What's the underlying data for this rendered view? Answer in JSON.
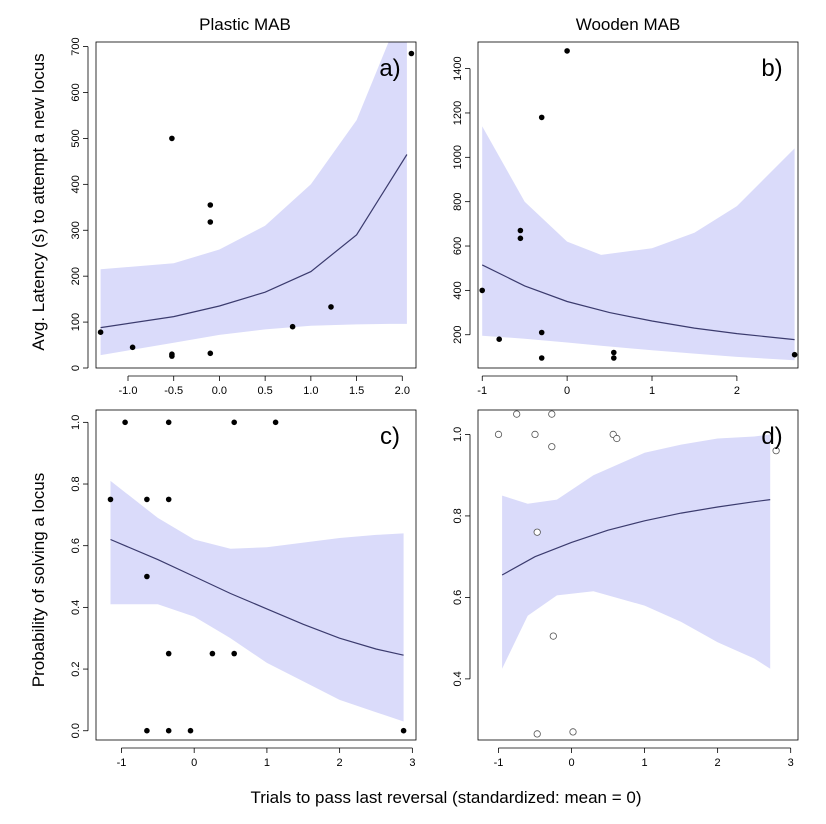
{
  "figure": {
    "column_titles": [
      "Plastic MAB",
      "Wooden MAB"
    ],
    "y_title_top": "Avg. Latency (s) to attempt a new locus",
    "y_title_bottom": "Probability of solving a locus",
    "x_title": "Trials to pass last reversal (standardized: mean = 0)",
    "band_color": "#dadbfa",
    "line_color": "#3b3b6e",
    "point_color": "#000000",
    "overlap_point_color": "#2e2e6a"
  },
  "chart_data": [
    {
      "type": "scatter",
      "panel_label": "a)",
      "column": "Plastic MAB",
      "xlim": [
        -1.35,
        2.15
      ],
      "ylim": [
        0,
        710
      ],
      "x_ticks": [
        -1.0,
        -0.5,
        0.0,
        0.5,
        1.0,
        1.5,
        2.0
      ],
      "x_tick_labels": [
        "-1.0",
        "-0.5",
        "0.0",
        "0.5",
        "1.0",
        "1.5",
        "2.0"
      ],
      "y_ticks": [
        0,
        100,
        200,
        300,
        400,
        500,
        600,
        700
      ],
      "y_tick_labels": [
        "0",
        "100",
        "200",
        "300",
        "400",
        "500",
        "600",
        "700"
      ],
      "points": [
        {
          "x": -1.3,
          "y": 78
        },
        {
          "x": -0.95,
          "y": 45
        },
        {
          "x": -0.52,
          "y": 500
        },
        {
          "x": -0.52,
          "y": 30
        },
        {
          "x": -0.52,
          "y": 26
        },
        {
          "x": -0.1,
          "y": 355
        },
        {
          "x": -0.1,
          "y": 318
        },
        {
          "x": -0.1,
          "y": 32
        },
        {
          "x": 0.8,
          "y": 90
        },
        {
          "x": 1.22,
          "y": 133
        },
        {
          "x": 2.1,
          "y": 685
        }
      ],
      "fit": {
        "x": [
          -1.3,
          -0.5,
          0.0,
          0.5,
          1.0,
          1.5,
          2.05
        ],
        "y": [
          88,
          112,
          135,
          165,
          210,
          290,
          465
        ]
      },
      "band": {
        "x": [
          -1.3,
          -0.5,
          0.0,
          0.5,
          1.0,
          1.5,
          1.85,
          2.05
        ],
        "upper": [
          215,
          228,
          258,
          310,
          400,
          540,
          710,
          710
        ],
        "lower": [
          28,
          55,
          72,
          84,
          92,
          95,
          96,
          96
        ]
      }
    },
    {
      "type": "scatter",
      "panel_label": "b)",
      "column": "Wooden MAB",
      "xlim": [
        -1.05,
        2.72
      ],
      "ylim": [
        50,
        1520
      ],
      "x_ticks": [
        -1,
        0,
        1,
        2
      ],
      "x_tick_labels": [
        "-1",
        "0",
        "1",
        "2"
      ],
      "y_ticks": [
        200,
        400,
        600,
        800,
        1000,
        1200,
        1400
      ],
      "y_tick_labels": [
        "200",
        "400",
        "600",
        "800",
        "1000",
        "1200",
        "1400"
      ],
      "points": [
        {
          "x": -1.0,
          "y": 400
        },
        {
          "x": -0.8,
          "y": 180
        },
        {
          "x": -0.3,
          "y": 1180
        },
        {
          "x": -0.3,
          "y": 210
        },
        {
          "x": -0.3,
          "y": 95
        },
        {
          "x": -0.55,
          "y": 670
        },
        {
          "x": -0.55,
          "y": 635
        },
        {
          "x": 0.0,
          "y": 1480
        },
        {
          "x": 0.55,
          "y": 120
        },
        {
          "x": 0.55,
          "y": 95
        },
        {
          "x": 2.68,
          "y": 110
        }
      ],
      "fit": {
        "x": [
          -1.0,
          -0.5,
          0.0,
          0.5,
          1.0,
          1.5,
          2.0,
          2.68
        ],
        "y": [
          515,
          420,
          350,
          300,
          262,
          230,
          205,
          178
        ]
      },
      "band": {
        "x": [
          -1.0,
          -0.5,
          0.0,
          0.4,
          1.0,
          1.5,
          2.0,
          2.68
        ],
        "upper": [
          1140,
          800,
          620,
          560,
          590,
          660,
          780,
          1040
        ],
        "lower": [
          195,
          182,
          165,
          150,
          130,
          115,
          100,
          85
        ]
      }
    },
    {
      "type": "scatter",
      "panel_label": "c)",
      "column": "Plastic MAB",
      "xlim": [
        -1.35,
        3.05
      ],
      "ylim": [
        -0.03,
        1.04
      ],
      "x_ticks": [
        -1,
        0,
        1,
        2,
        3
      ],
      "x_tick_labels": [
        "-1",
        "0",
        "1",
        "2",
        "3"
      ],
      "y_ticks": [
        0.0,
        0.2,
        0.4,
        0.6,
        0.8,
        1.0
      ],
      "y_tick_labels": [
        "0.0",
        "0.2",
        "0.4",
        "0.6",
        "0.8",
        "1.0"
      ],
      "points": [
        {
          "x": -0.95,
          "y": 1.0
        },
        {
          "x": -0.35,
          "y": 1.0
        },
        {
          "x": 0.55,
          "y": 1.0
        },
        {
          "x": 1.12,
          "y": 1.0
        },
        {
          "x": -1.15,
          "y": 0.75
        },
        {
          "x": -0.65,
          "y": 0.75
        },
        {
          "x": -0.35,
          "y": 0.75
        },
        {
          "x": -0.65,
          "y": 0.5
        },
        {
          "x": -0.35,
          "y": 0.25
        },
        {
          "x": 0.25,
          "y": 0.25
        },
        {
          "x": 0.55,
          "y": 0.25
        },
        {
          "x": -0.65,
          "y": 0.0
        },
        {
          "x": -0.35,
          "y": 0.0
        },
        {
          "x": -0.05,
          "y": 0.0
        },
        {
          "x": 2.88,
          "y": 0.0
        }
      ],
      "fit": {
        "x": [
          -1.15,
          -0.5,
          0.0,
          0.5,
          1.0,
          1.5,
          2.0,
          2.5,
          2.88
        ],
        "y": [
          0.62,
          0.555,
          0.5,
          0.445,
          0.395,
          0.345,
          0.3,
          0.265,
          0.245
        ]
      },
      "band": {
        "x": [
          -1.15,
          -0.5,
          0.0,
          0.5,
          1.0,
          1.5,
          2.0,
          2.5,
          2.88
        ],
        "upper": [
          0.81,
          0.69,
          0.62,
          0.59,
          0.595,
          0.61,
          0.625,
          0.635,
          0.64
        ],
        "lower": [
          0.41,
          0.41,
          0.37,
          0.3,
          0.22,
          0.16,
          0.1,
          0.06,
          0.03
        ]
      }
    },
    {
      "type": "scatter",
      "panel_label": "d)",
      "column": "Wooden MAB",
      "xlim": [
        -1.28,
        3.1
      ],
      "ylim": [
        0.25,
        1.06
      ],
      "x_ticks": [
        -1,
        0,
        1,
        2,
        3
      ],
      "x_tick_labels": [
        "-1",
        "0",
        "1",
        "2",
        "3"
      ],
      "y_ticks": [
        0.4,
        0.6,
        0.8,
        1.0
      ],
      "y_tick_labels": [
        "0.4",
        "0.6",
        "0.8",
        "1.0"
      ],
      "marker": "open-circle",
      "points": [
        {
          "x": -1.0,
          "y": 1.0
        },
        {
          "x": -0.75,
          "y": 1.05
        },
        {
          "x": -0.5,
          "y": 1.0
        },
        {
          "x": -0.27,
          "y": 1.05
        },
        {
          "x": -0.27,
          "y": 0.97
        },
        {
          "x": 0.57,
          "y": 1.0
        },
        {
          "x": 0.62,
          "y": 0.99
        },
        {
          "x": 2.8,
          "y": 0.96
        },
        {
          "x": -0.47,
          "y": 0.76
        },
        {
          "x": -0.25,
          "y": 0.505
        },
        {
          "x": -0.47,
          "y": 0.265
        },
        {
          "x": 0.02,
          "y": 0.27
        }
      ],
      "fit": {
        "x": [
          -0.95,
          -0.5,
          0.0,
          0.5,
          1.0,
          1.5,
          2.0,
          2.5,
          2.72
        ],
        "y": [
          0.655,
          0.7,
          0.735,
          0.765,
          0.788,
          0.807,
          0.822,
          0.835,
          0.84
        ]
      },
      "band": {
        "x": [
          -0.95,
          -0.6,
          -0.2,
          0.3,
          1.0,
          1.5,
          2.0,
          2.5,
          2.72
        ],
        "upper": [
          0.85,
          0.83,
          0.84,
          0.9,
          0.955,
          0.975,
          0.99,
          0.995,
          1.0
        ],
        "lower": [
          0.425,
          0.555,
          0.605,
          0.615,
          0.58,
          0.54,
          0.49,
          0.45,
          0.425
        ]
      }
    }
  ]
}
